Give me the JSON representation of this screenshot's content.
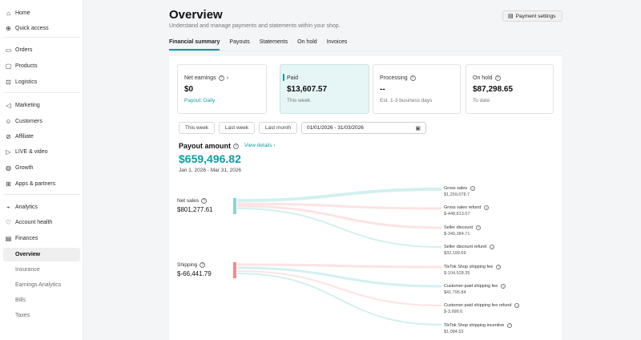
{
  "sidebar": {
    "items": [
      {
        "label": "Home",
        "icon": "home-icon",
        "glyph": "⌂"
      },
      {
        "label": "Quick access",
        "icon": "quick-access-icon",
        "glyph": "⊕"
      },
      {
        "label": "Orders",
        "icon": "orders-icon",
        "glyph": "▭"
      },
      {
        "label": "Products",
        "icon": "products-icon",
        "glyph": "▢"
      },
      {
        "label": "Logistics",
        "icon": "logistics-icon",
        "glyph": "⊡"
      },
      {
        "label": "Marketing",
        "icon": "marketing-icon",
        "glyph": "◁"
      },
      {
        "label": "Customers",
        "icon": "customers-icon",
        "glyph": "☺"
      },
      {
        "label": "Affiliate",
        "icon": "affiliate-icon",
        "glyph": "⊘"
      },
      {
        "label": "LIVE & video",
        "icon": "live-video-icon",
        "glyph": "▷"
      },
      {
        "label": "Growth",
        "icon": "growth-icon",
        "glyph": "◍"
      },
      {
        "label": "Apps & partners",
        "icon": "apps-icon",
        "glyph": "⊞"
      },
      {
        "label": "Analytics",
        "icon": "analytics-icon",
        "glyph": "⌁"
      },
      {
        "label": "Account health",
        "icon": "account-health-icon",
        "glyph": "♡"
      },
      {
        "label": "Finances",
        "icon": "finances-icon",
        "glyph": "▤"
      }
    ],
    "sub_items": [
      {
        "label": "Overview"
      },
      {
        "label": "Insurance"
      },
      {
        "label": "Earnings Analytics"
      },
      {
        "label": "Bills"
      },
      {
        "label": "Taxes"
      }
    ]
  },
  "header": {
    "title": "Overview",
    "subtitle": "Understand and manage payments and statements within your shop.",
    "payment_settings": "Payment settings"
  },
  "tabs": [
    "Financial summary",
    "Payouts",
    "Statements",
    "On hold",
    "Invoices"
  ],
  "cards": [
    {
      "label": "Net earnings",
      "value": "$0",
      "sub": "Payout: Daily"
    },
    {
      "label": "Paid",
      "value": "$13,607.57",
      "sub": "This week"
    },
    {
      "label": "Processing",
      "value": "--",
      "sub": "Est. 1-3 business days"
    },
    {
      "label": "On hold",
      "value": "$87,298.65",
      "sub": "To date"
    }
  ],
  "filters": {
    "this_week": "This week",
    "last_week": "Last week",
    "last_month": "Last month",
    "date_range": "01/01/2026 - 31/03/2026"
  },
  "payout": {
    "label": "Payout amount",
    "view_details": "View details",
    "amount": "$659,496.82",
    "range": "Jan 1, 2026 - Mar 31, 2026"
  },
  "sankey": {
    "sources": [
      {
        "label": "Net sales",
        "value": "$801,277.61",
        "color": "#8fd3d3"
      },
      {
        "label": "Shipping",
        "value": "$-66,441.79",
        "color": "#f08c8c"
      }
    ],
    "targets": [
      {
        "label": "Gross sales",
        "value": "$1,259,078.7"
      },
      {
        "label": "Gross sales refund",
        "value": "$-448,813.07"
      },
      {
        "label": "Seller discount",
        "value": "$-349,384.71"
      },
      {
        "label": "Seller discount refund",
        "value": "$32,199.69"
      },
      {
        "label": "TikTok Shop shipping fee",
        "value": "$-104,528.35"
      },
      {
        "label": "Customer-paid shipping fee",
        "value": "$41,795.84"
      },
      {
        "label": "Customer-paid shipping fee refund",
        "value": "$-3,998.6"
      },
      {
        "label": "TikTok Shop shipping incentive",
        "value": "$1,084.53"
      }
    ]
  },
  "colors": {
    "accent": "#0d9e9e",
    "positive_flow": "#cdeeee",
    "negative_flow": "#fde0e0"
  }
}
